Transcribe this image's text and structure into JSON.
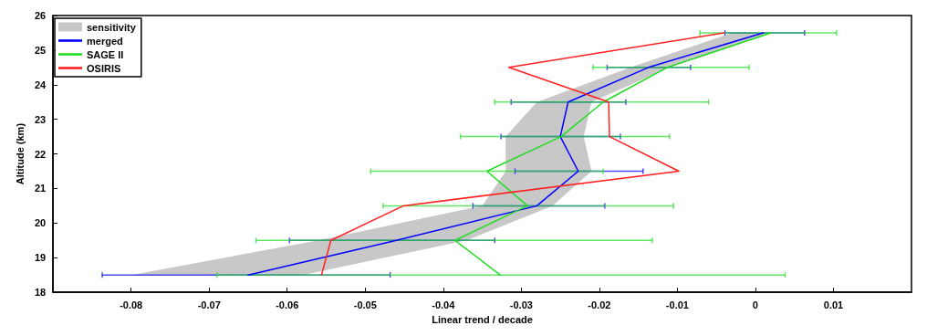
{
  "chart_data": {
    "type": "line",
    "orientation": "horizontal",
    "xlabel": "Linear trend / decade",
    "ylabel": "Altitude (km)",
    "xlim": [
      -0.09,
      0.02
    ],
    "xticks": [
      -0.08,
      -0.07,
      -0.06,
      -0.05,
      -0.04,
      -0.03,
      -0.02,
      -0.01,
      0,
      0.01
    ],
    "ylim": [
      18,
      26
    ],
    "yticks": [
      18,
      19,
      20,
      21,
      22,
      23,
      24,
      25,
      26
    ],
    "grid": false,
    "legend": "top left",
    "marker": "none",
    "line_style": "solid",
    "series": [
      {
        "name": "sensitivity",
        "type": "area",
        "color": "#c8c8c8",
        "x": [
          18.5,
          19.5,
          20.5,
          21.5,
          22.5,
          23.5,
          24.5,
          25.5
        ],
        "values": [
          null,
          null,
          null,
          null,
          null,
          null,
          null,
          null
        ],
        "lower": [
          -0.08,
          -0.056,
          -0.035,
          -0.032,
          -0.032,
          -0.028,
          -0.016,
          -0.003
        ],
        "upper": [
          -0.058,
          -0.037,
          -0.026,
          -0.021,
          -0.022,
          -0.021,
          -0.011,
          0.002
        ]
      },
      {
        "name": "merged",
        "color": "#0000ff",
        "x": [
          18.5,
          19.5,
          20.5,
          21.5,
          22.5,
          23.5,
          24.5,
          25.5
        ],
        "values": [
          -0.065,
          -0.046,
          -0.028,
          -0.0227,
          -0.025,
          -0.024,
          -0.0137,
          0.001
        ],
        "errors": [
          [
            -0.0837,
            -0.0468
          ],
          [
            -0.0597,
            -0.0334
          ],
          [
            -0.0362,
            -0.0193
          ],
          [
            -0.0308,
            -0.0144
          ],
          [
            -0.0326,
            -0.0173
          ],
          [
            -0.0313,
            -0.0166
          ],
          [
            -0.019,
            -0.0083
          ],
          [
            -0.0039,
            0.0063
          ]
        ]
      },
      {
        "name": "SAGE II",
        "color": "#22dd22",
        "x": [
          18.5,
          19.5,
          20.5,
          21.5,
          22.5,
          23.5,
          24.5,
          25.5
        ],
        "values": [
          -0.0327,
          -0.0385,
          -0.0292,
          -0.0344,
          -0.0249,
          -0.0195,
          -0.0113,
          0.002
        ],
        "errors": [
          [
            -0.069,
            0.0038
          ],
          [
            -0.064,
            -0.0132
          ],
          [
            -0.0477,
            -0.0105
          ],
          [
            -0.0493,
            -0.0195
          ],
          [
            -0.0378,
            -0.011
          ],
          [
            -0.0334,
            -0.006
          ],
          [
            -0.0208,
            -0.0008
          ],
          [
            -0.0071,
            0.0104
          ]
        ]
      },
      {
        "name": "OSIRIS",
        "color": "#ff2020",
        "x": [
          18.5,
          19.5,
          20.5,
          21.5,
          22.5,
          23.5,
          24.5,
          25.5
        ],
        "values": [
          -0.0556,
          -0.0544,
          -0.0451,
          -0.0098,
          -0.0187,
          -0.0188,
          -0.0316,
          -0.004
        ]
      }
    ]
  }
}
